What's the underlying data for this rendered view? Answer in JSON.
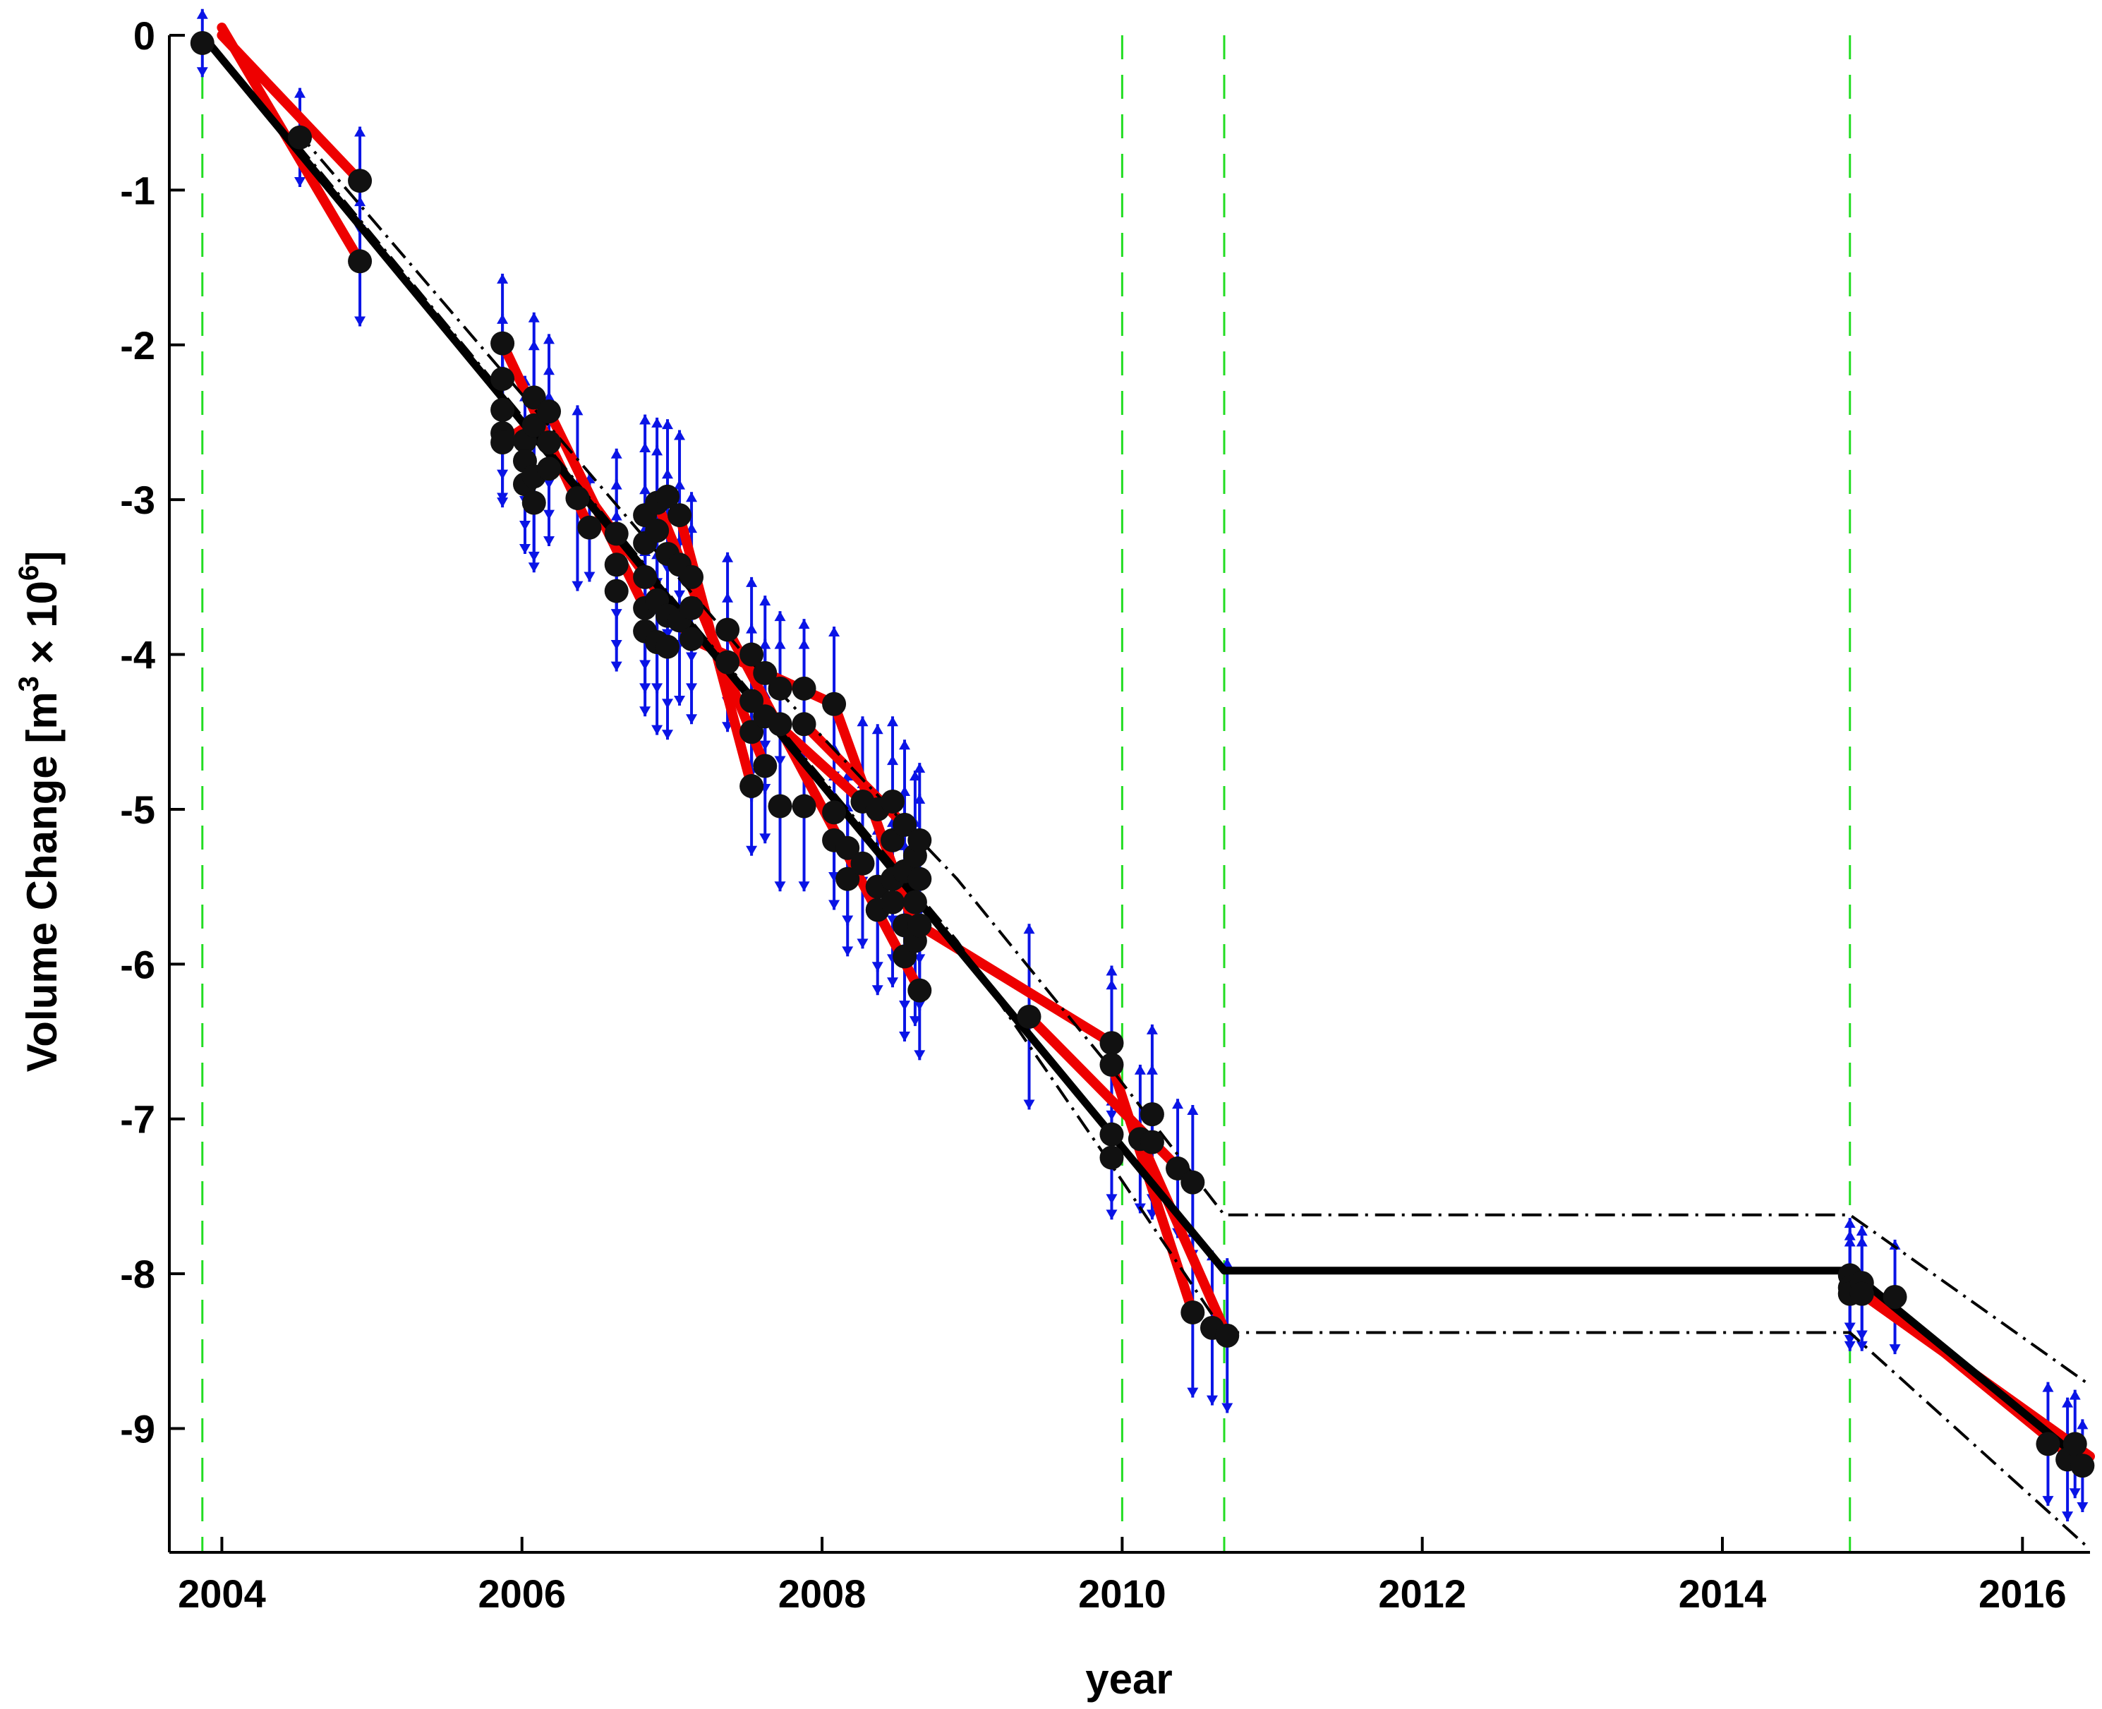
{
  "chart_data": {
    "type": "scatter",
    "title": "",
    "xlabel": "year",
    "ylabel": {
      "prefix": "Volume Change [m",
      "sup1": "3",
      "mid": " × 10",
      "sup2": "6",
      "suffix": "]"
    },
    "xlim": [
      2003.65,
      2016.45
    ],
    "ylim": [
      -9.8,
      0
    ],
    "xticks": [
      2004,
      2006,
      2008,
      2010,
      2012,
      2014,
      2016
    ],
    "yticks": [
      0,
      -1,
      -2,
      -3,
      -4,
      -5,
      -6,
      -7,
      -8,
      -9
    ],
    "grid": false,
    "colors": {
      "points": "#111111",
      "error_bars": "#0a14e6",
      "red_fits": "#ee0000",
      "model": "#000000",
      "events": "#22dd22"
    },
    "event_lines": [
      2003.87,
      2010.0,
      2010.68,
      2014.85
    ],
    "points": [
      [
        2003.87,
        -0.05,
        0.22
      ],
      [
        2004.52,
        -0.66,
        0.32
      ],
      [
        2004.92,
        -0.94,
        0.35
      ],
      [
        2004.92,
        -1.46,
        0.42
      ],
      [
        2005.87,
        -1.99,
        0.45
      ],
      [
        2005.87,
        -2.22,
        0.42
      ],
      [
        2005.87,
        -2.42,
        0.45
      ],
      [
        2005.87,
        -2.57,
        0.45
      ],
      [
        2005.87,
        -2.63,
        0.42
      ],
      [
        2006.02,
        -2.62,
        0.42
      ],
      [
        2006.02,
        -2.75,
        0.45
      ],
      [
        2006.02,
        -2.9,
        0.45
      ],
      [
        2006.08,
        -2.34,
        0.55
      ],
      [
        2006.08,
        -2.52,
        0.55
      ],
      [
        2006.08,
        -2.85,
        0.55
      ],
      [
        2006.08,
        -3.02,
        0.45
      ],
      [
        2006.18,
        -2.43,
        0.5
      ],
      [
        2006.18,
        -2.63,
        0.5
      ],
      [
        2006.18,
        -2.8,
        0.5
      ],
      [
        2006.37,
        -2.99,
        0.6
      ],
      [
        2006.45,
        -3.18,
        0.35
      ],
      [
        2006.63,
        -3.22,
        0.55
      ],
      [
        2006.63,
        -3.42,
        0.55
      ],
      [
        2006.63,
        -3.59,
        0.52
      ],
      [
        2006.82,
        -3.1,
        0.65
      ],
      [
        2006.82,
        -3.28,
        0.65
      ],
      [
        2006.82,
        -3.5,
        0.6
      ],
      [
        2006.82,
        -3.7,
        0.55
      ],
      [
        2006.82,
        -3.85,
        0.55
      ],
      [
        2006.9,
        -3.02,
        0.55
      ],
      [
        2006.9,
        -3.2,
        0.55
      ],
      [
        2006.9,
        -3.65,
        0.6
      ],
      [
        2006.9,
        -3.92,
        0.6
      ],
      [
        2006.97,
        -2.98,
        0.5
      ],
      [
        2006.97,
        -3.35,
        0.55
      ],
      [
        2006.97,
        -3.75,
        0.6
      ],
      [
        2006.97,
        -3.95,
        0.6
      ],
      [
        2007.05,
        -3.1,
        0.55
      ],
      [
        2007.05,
        -3.42,
        0.55
      ],
      [
        2007.05,
        -3.78,
        0.55
      ],
      [
        2007.13,
        -3.5,
        0.55
      ],
      [
        2007.13,
        -3.7,
        0.55
      ],
      [
        2007.13,
        -3.9,
        0.55
      ],
      [
        2007.37,
        -3.84,
        0.5
      ],
      [
        2007.37,
        -4.05,
        0.45
      ],
      [
        2007.53,
        -4.0,
        0.5
      ],
      [
        2007.53,
        -4.3,
        0.5
      ],
      [
        2007.53,
        -4.5,
        0.45
      ],
      [
        2007.53,
        -4.85,
        0.45
      ],
      [
        2007.62,
        -4.12,
        0.5
      ],
      [
        2007.62,
        -4.4,
        0.5
      ],
      [
        2007.62,
        -4.72,
        0.5
      ],
      [
        2007.72,
        -4.22,
        0.5
      ],
      [
        2007.72,
        -4.45,
        0.55
      ],
      [
        2007.72,
        -4.98,
        0.55
      ],
      [
        2007.88,
        -4.22,
        0.45
      ],
      [
        2007.88,
        -4.45,
        0.55
      ],
      [
        2007.88,
        -4.98,
        0.55
      ],
      [
        2008.08,
        -4.32,
        0.5
      ],
      [
        2008.08,
        -5.02,
        0.45
      ],
      [
        2008.08,
        -5.2,
        0.45
      ],
      [
        2008.17,
        -5.25,
        0.5
      ],
      [
        2008.17,
        -5.45,
        0.5
      ],
      [
        2008.27,
        -4.95,
        0.55
      ],
      [
        2008.27,
        -5.35,
        0.55
      ],
      [
        2008.37,
        -5.0,
        0.55
      ],
      [
        2008.37,
        -5.5,
        0.55
      ],
      [
        2008.37,
        -5.65,
        0.55
      ],
      [
        2008.47,
        -4.95,
        0.55
      ],
      [
        2008.47,
        -5.2,
        0.55
      ],
      [
        2008.47,
        -5.45,
        0.55
      ],
      [
        2008.47,
        -5.6,
        0.55
      ],
      [
        2008.55,
        -5.1,
        0.55
      ],
      [
        2008.55,
        -5.4,
        0.55
      ],
      [
        2008.55,
        -5.75,
        0.55
      ],
      [
        2008.55,
        -5.95,
        0.55
      ],
      [
        2008.62,
        -5.3,
        0.55
      ],
      [
        2008.62,
        -5.6,
        0.55
      ],
      [
        2008.62,
        -5.85,
        0.55
      ],
      [
        2008.65,
        -5.2,
        0.5
      ],
      [
        2008.65,
        -5.45,
        0.55
      ],
      [
        2008.65,
        -5.75,
        0.55
      ],
      [
        2008.65,
        -6.17,
        0.45
      ],
      [
        2009.38,
        -6.34,
        0.6
      ],
      [
        2009.93,
        -6.51,
        0.5
      ],
      [
        2009.93,
        -6.65,
        0.55
      ],
      [
        2009.93,
        -7.1,
        0.45
      ],
      [
        2009.93,
        -7.25,
        0.4
      ],
      [
        2010.12,
        -7.13,
        0.48
      ],
      [
        2010.2,
        -6.97,
        0.58
      ],
      [
        2010.2,
        -7.15,
        0.5
      ],
      [
        2010.37,
        -7.32,
        0.45
      ],
      [
        2010.47,
        -8.25,
        0.55
      ],
      [
        2010.47,
        -7.41,
        0.5
      ],
      [
        2010.6,
        -8.35,
        0.5
      ],
      [
        2010.7,
        -8.4,
        0.5
      ],
      [
        2014.85,
        -8.01,
        0.37
      ],
      [
        2014.85,
        -8.09,
        0.37
      ],
      [
        2014.85,
        -8.13,
        0.37
      ],
      [
        2014.93,
        -8.06,
        0.37
      ],
      [
        2014.93,
        -8.13,
        0.37
      ],
      [
        2015.15,
        -8.15,
        0.37
      ],
      [
        2016.17,
        -9.1,
        0.4
      ],
      [
        2016.3,
        -9.2,
        0.4
      ],
      [
        2016.35,
        -9.1,
        0.35
      ],
      [
        2016.4,
        -9.24,
        0.3
      ]
    ],
    "red_fits": [
      [
        [
          2004.0,
          0.05
        ],
        [
          2004.92,
          -1.46
        ]
      ],
      [
        [
          2004.0,
          0.0
        ],
        [
          2004.92,
          -0.94
        ]
      ],
      [
        [
          2005.87,
          -1.99
        ],
        [
          2006.45,
          -3.18
        ]
      ],
      [
        [
          2005.87,
          -2.63
        ],
        [
          2006.18,
          -2.43
        ]
      ],
      [
        [
          2006.18,
          -2.43
        ],
        [
          2006.82,
          -3.7
        ]
      ],
      [
        [
          2006.45,
          -2.99
        ],
        [
          2007.13,
          -3.9
        ]
      ],
      [
        [
          2006.9,
          -3.02
        ],
        [
          2007.62,
          -4.72
        ]
      ],
      [
        [
          2007.05,
          -3.1
        ],
        [
          2007.53,
          -4.85
        ]
      ],
      [
        [
          2007.13,
          -3.9
        ],
        [
          2008.08,
          -4.32
        ]
      ],
      [
        [
          2007.37,
          -3.84
        ],
        [
          2008.65,
          -6.17
        ]
      ],
      [
        [
          2007.53,
          -4.3
        ],
        [
          2008.27,
          -4.95
        ]
      ],
      [
        [
          2007.88,
          -4.45
        ],
        [
          2008.65,
          -5.2
        ]
      ],
      [
        [
          2008.08,
          -4.32
        ],
        [
          2008.65,
          -5.85
        ]
      ],
      [
        [
          2008.65,
          -5.75
        ],
        [
          2009.93,
          -6.51
        ]
      ],
      [
        [
          2009.38,
          -6.34
        ],
        [
          2010.47,
          -7.41
        ]
      ],
      [
        [
          2009.93,
          -6.65
        ],
        [
          2010.47,
          -8.25
        ]
      ],
      [
        [
          2010.12,
          -7.13
        ],
        [
          2010.7,
          -8.4
        ]
      ],
      [
        [
          2014.85,
          -8.01
        ],
        [
          2016.4,
          -9.24
        ]
      ],
      [
        [
          2014.93,
          -8.13
        ],
        [
          2016.45,
          -9.18
        ]
      ]
    ],
    "model_line": [
      [
        2003.87,
        0.0
      ],
      [
        2010.68,
        -7.98
      ],
      [
        2014.85,
        -7.98
      ],
      [
        2016.45,
        -9.25
      ]
    ],
    "model_upper": [
      [
        2004.5,
        -0.62
      ],
      [
        2007.5,
        -4.02
      ],
      [
        2008.9,
        -5.45
      ],
      [
        2009.93,
        -6.68
      ],
      [
        2010.68,
        -7.62
      ],
      [
        2014.85,
        -7.62
      ],
      [
        2016.45,
        -8.72
      ]
    ],
    "model_lower": [
      [
        2004.5,
        -0.7
      ],
      [
        2007.5,
        -4.22
      ],
      [
        2008.9,
        -5.85
      ],
      [
        2009.93,
        -7.3
      ],
      [
        2010.68,
        -8.38
      ],
      [
        2014.85,
        -8.38
      ],
      [
        2016.45,
        -9.78
      ]
    ]
  }
}
